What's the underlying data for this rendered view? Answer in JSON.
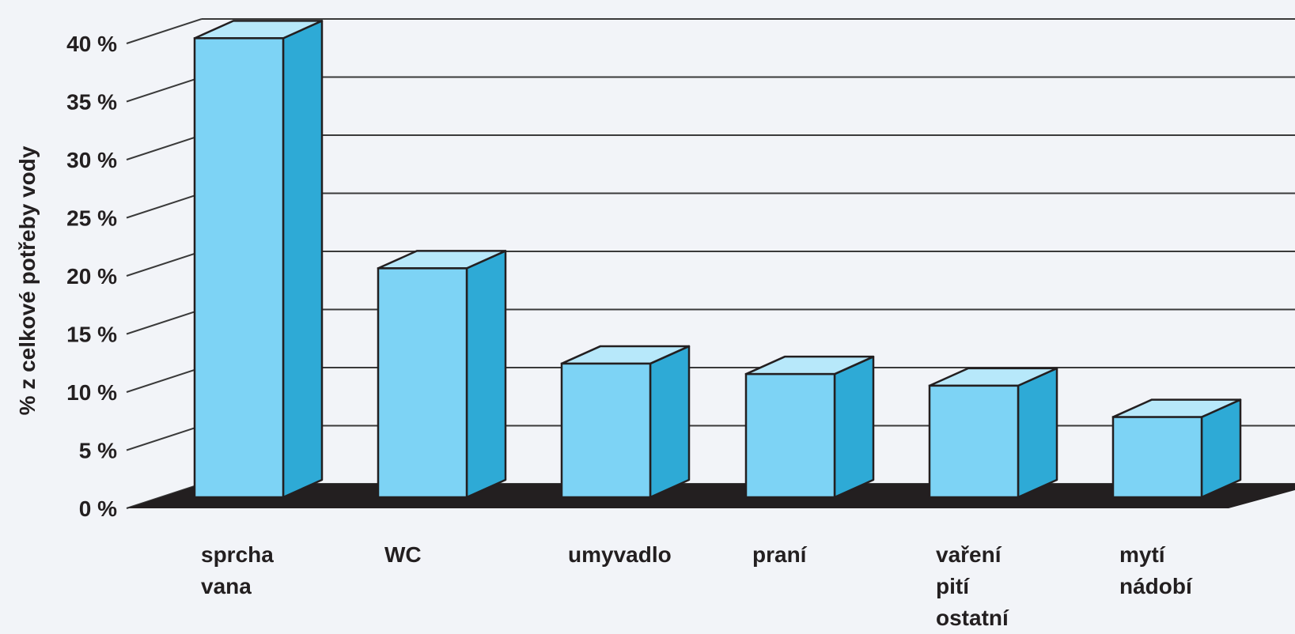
{
  "chart_data": {
    "type": "bar",
    "ylabel": "% z celkové potřeby vody",
    "xlabel": "",
    "ylim": [
      0,
      40
    ],
    "yticks": [
      "0 %",
      "5 %",
      "10 %",
      "15 %",
      "20 %",
      "25 %",
      "30 %",
      "35 %",
      "40 %"
    ],
    "categories": [
      [
        "sprcha",
        "vana"
      ],
      [
        "WC"
      ],
      [
        "umyvadlo"
      ],
      [
        "praní"
      ],
      [
        "vaření",
        "pití",
        "ostatní"
      ],
      [
        "mytí",
        "nádobí"
      ]
    ],
    "values": [
      39.5,
      19.7,
      11.5,
      10.6,
      9.6,
      6.9
    ],
    "grid": true,
    "colors": {
      "bar_front": "#7dd3f5",
      "bar_top": "#b7e8fa",
      "bar_side": "#2eaad6",
      "floor": "#231f20",
      "gridline": "#3a3a3a"
    }
  }
}
